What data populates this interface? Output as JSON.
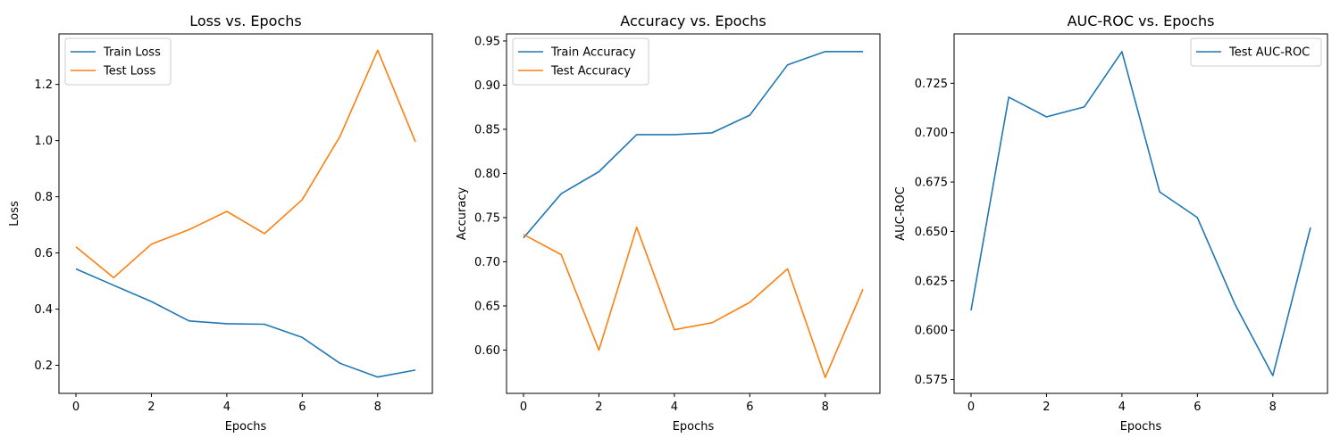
{
  "chart_data": [
    {
      "type": "line",
      "title": "Loss vs. Epochs",
      "xlabel": "Epochs",
      "ylabel": "Loss",
      "xlim": [
        -0.45,
        9.45
      ],
      "ylim": [
        0.1,
        1.38
      ],
      "xticks": [
        0,
        2,
        4,
        6,
        8
      ],
      "xtick_labels": [
        "0",
        "2",
        "4",
        "6",
        "8"
      ],
      "yticks": [
        0.2,
        0.4,
        0.6,
        0.8,
        1.0,
        1.2
      ],
      "ytick_labels": [
        "0.2",
        "0.4",
        "0.6",
        "0.8",
        "1.0",
        "1.2"
      ],
      "legend": "top-left",
      "grid": false,
      "x": [
        0,
        1,
        2,
        3,
        4,
        5,
        6,
        7,
        8,
        9
      ],
      "series": [
        {
          "name": "Train Loss",
          "color": "#1f77b4",
          "values": [
            0.543,
            0.485,
            0.427,
            0.358,
            0.348,
            0.346,
            0.299,
            0.207,
            0.158,
            0.183
          ]
        },
        {
          "name": "Test Loss",
          "color": "#ff7f0e",
          "values": [
            0.622,
            0.512,
            0.631,
            0.683,
            0.748,
            0.669,
            0.79,
            1.015,
            1.322,
            0.996
          ]
        }
      ]
    },
    {
      "type": "line",
      "title": "Accuracy vs. Epochs",
      "xlabel": "Epochs",
      "ylabel": "Accuracy",
      "xlim": [
        -0.45,
        9.45
      ],
      "ylim": [
        0.551,
        0.958
      ],
      "xticks": [
        0,
        2,
        4,
        6,
        8
      ],
      "xtick_labels": [
        "0",
        "2",
        "4",
        "6",
        "8"
      ],
      "yticks": [
        0.6,
        0.65,
        0.7,
        0.75,
        0.8,
        0.85,
        0.9,
        0.95
      ],
      "ytick_labels": [
        "0.60",
        "0.65",
        "0.70",
        "0.75",
        "0.80",
        "0.85",
        "0.90",
        "0.95"
      ],
      "legend": "top-left",
      "grid": false,
      "x": [
        0,
        1,
        2,
        3,
        4,
        5,
        6,
        7,
        8,
        9
      ],
      "series": [
        {
          "name": "Train Accuracy",
          "color": "#1f77b4",
          "values": [
            0.727,
            0.777,
            0.802,
            0.844,
            0.844,
            0.846,
            0.866,
            0.923,
            0.938,
            0.938
          ]
        },
        {
          "name": "Test Accuracy",
          "color": "#ff7f0e",
          "values": [
            0.731,
            0.708,
            0.6,
            0.739,
            0.623,
            0.631,
            0.654,
            0.692,
            0.569,
            0.669
          ]
        }
      ]
    },
    {
      "type": "line",
      "title": "AUC-ROC vs. Epochs",
      "xlabel": "Epochs",
      "ylabel": "AUC-ROC",
      "xlim": [
        -0.45,
        9.45
      ],
      "ylim": [
        0.568,
        0.75
      ],
      "xticks": [
        0,
        2,
        4,
        6,
        8
      ],
      "xtick_labels": [
        "0",
        "2",
        "4",
        "6",
        "8"
      ],
      "yticks": [
        0.575,
        0.6,
        0.625,
        0.65,
        0.675,
        0.7,
        0.725
      ],
      "ytick_labels": [
        "0.575",
        "0.600",
        "0.625",
        "0.650",
        "0.675",
        "0.700",
        "0.725"
      ],
      "legend": "top-right",
      "grid": false,
      "x": [
        0,
        1,
        2,
        3,
        4,
        5,
        6,
        7,
        8,
        9
      ],
      "series": [
        {
          "name": "Test AUC-ROC",
          "color": "#1f77b4",
          "values": [
            0.61,
            0.718,
            0.708,
            0.713,
            0.741,
            0.67,
            0.657,
            0.613,
            0.577,
            0.652
          ]
        }
      ]
    }
  ]
}
